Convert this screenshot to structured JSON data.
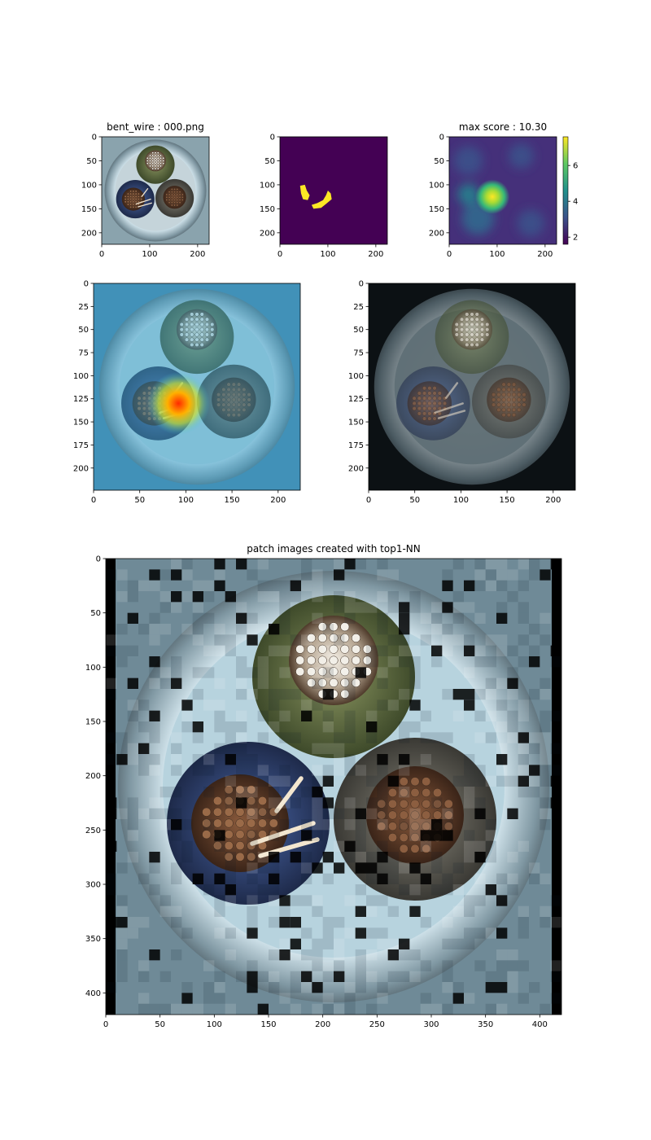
{
  "chart_data": [
    {
      "type": "image",
      "id": "input",
      "title": "bent_wire : 000.png",
      "xticks": [
        0,
        100,
        200
      ],
      "yticks": [
        0,
        50,
        100,
        150,
        200
      ],
      "xlim": [
        0,
        224
      ],
      "ylim": [
        224,
        0
      ],
      "colors": {
        "background": "#8aa3ad",
        "rim": "#cfe2ea",
        "wire_green": "#5b6b3a",
        "wire_blue": "#2b3c66",
        "wire_grey": "#5c5a52"
      }
    },
    {
      "type": "image",
      "id": "ground_truth_mask",
      "title": "",
      "xticks": [
        0,
        100,
        200
      ],
      "yticks": [
        0,
        50,
        100,
        150,
        200
      ],
      "xlim": [
        0,
        224
      ],
      "ylim": [
        224,
        0
      ],
      "colors": {
        "background": "#440154",
        "defect": "#fde725"
      }
    },
    {
      "type": "heatmap",
      "id": "anomaly_map",
      "title": "max score : 10.30",
      "xticks": [
        0,
        100,
        200
      ],
      "yticks": [
        0,
        50,
        100,
        150,
        200
      ],
      "xlim": [
        0,
        224
      ],
      "ylim": [
        224,
        0
      ],
      "colormap": "viridis",
      "colorbar": {
        "ticks": [
          2,
          4,
          6
        ],
        "range": [
          1.6,
          7.6
        ]
      },
      "hotspot": {
        "x": 90,
        "y": 125,
        "value": 7.5
      }
    },
    {
      "type": "image",
      "id": "overlay_heatmap",
      "title": "",
      "xticks": [
        0,
        50,
        100,
        150,
        200
      ],
      "yticks": [
        0,
        25,
        50,
        75,
        100,
        125,
        150,
        175,
        200
      ],
      "xlim": [
        0,
        224
      ],
      "ylim": [
        224,
        0
      ]
    },
    {
      "type": "image",
      "id": "overlay_dark",
      "title": "",
      "xticks": [
        0,
        50,
        100,
        150,
        200
      ],
      "yticks": [
        0,
        25,
        50,
        75,
        100,
        125,
        150,
        175,
        200
      ],
      "xlim": [
        0,
        224
      ],
      "ylim": [
        224,
        0
      ]
    },
    {
      "type": "image",
      "id": "patch_reconstruction",
      "title": "patch images created with top1-NN",
      "xticks": [
        0,
        50,
        100,
        150,
        200,
        250,
        300,
        350,
        400
      ],
      "yticks": [
        0,
        50,
        100,
        150,
        200,
        250,
        300,
        350,
        400
      ],
      "xlim": [
        0,
        420
      ],
      "ylim": [
        420,
        0
      ]
    }
  ]
}
